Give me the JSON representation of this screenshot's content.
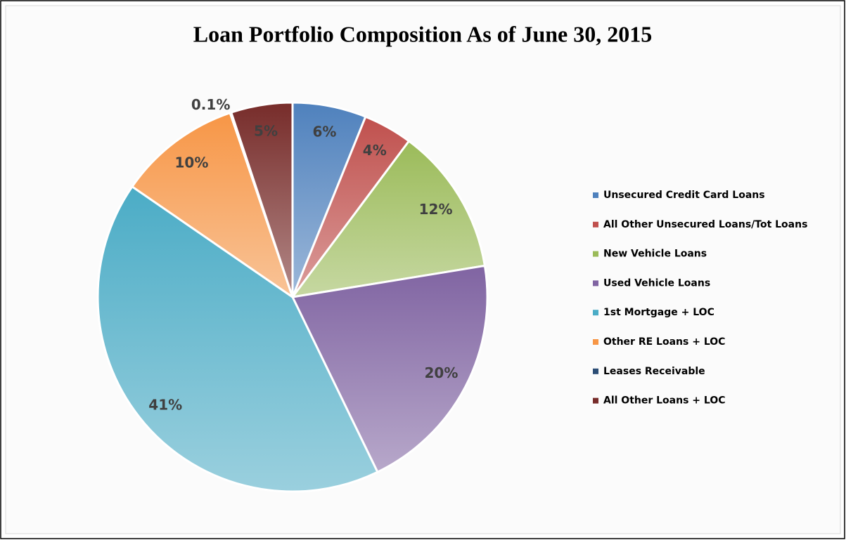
{
  "chart_data": {
    "type": "pie",
    "title": "Loan Portfolio Composition As of June 30, 2015",
    "categories": [
      "Unsecured Credit Card Loans",
      "All Other Unsecured Loans/Tot Loans",
      "New Vehicle Loans",
      "Used Vehicle Loans",
      "1st Mortgage + LOC",
      "Other RE Loans + LOC",
      "Leases Receivable",
      "All Other Loans + LOC"
    ],
    "values": [
      6,
      4,
      12,
      20,
      41,
      10,
      0.1,
      5
    ],
    "value_labels": [
      "6%",
      "4%",
      "12%",
      "20%",
      "41%",
      "10%",
      "0.1%",
      "5%"
    ],
    "colors": [
      "#4f81bd",
      "#c0504d",
      "#9bbb59",
      "#8064a2",
      "#4bacc6",
      "#f79646",
      "#2c4d75",
      "#772c2a"
    ],
    "legend": "right"
  }
}
